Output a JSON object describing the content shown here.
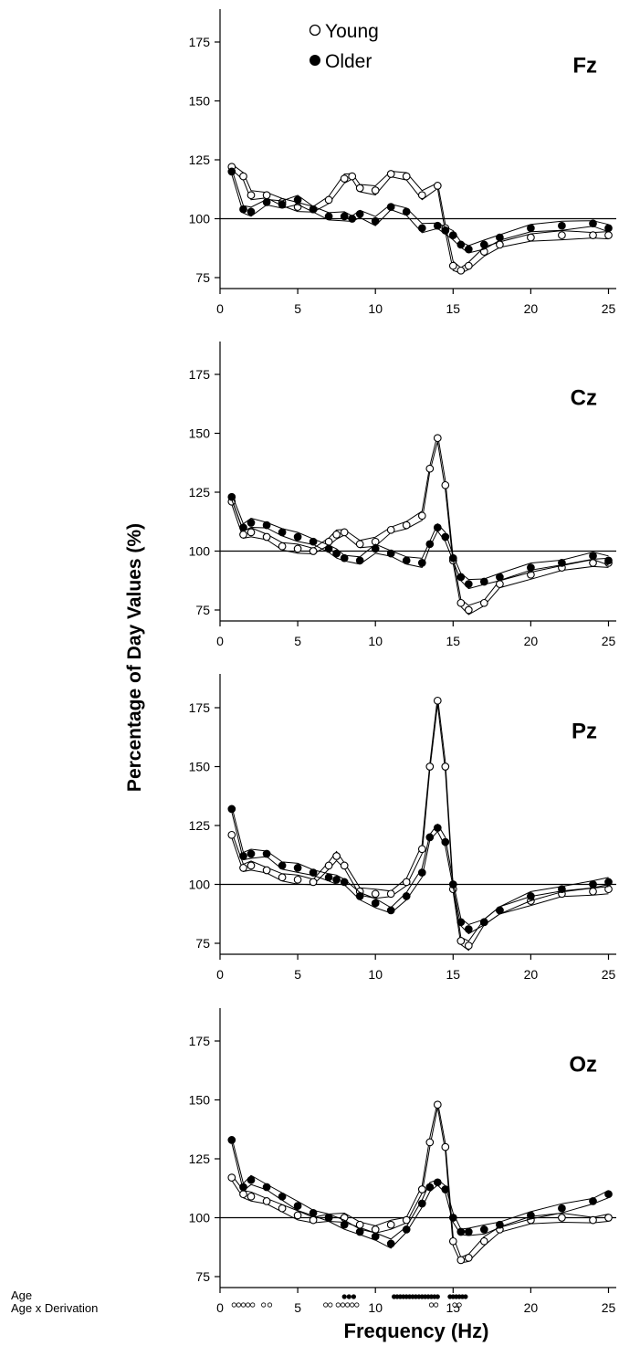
{
  "chart_data": {
    "type": "line",
    "ylabel": "Percentage of Day Values (%)",
    "xlabel": "Frequency (Hz)",
    "legend": {
      "position": "top-center",
      "entries": [
        {
          "name": "Young",
          "marker": "open-circle"
        },
        {
          "name": "Older",
          "marker": "filled-circle"
        }
      ]
    },
    "xlim": [
      0,
      25.5
    ],
    "ylim": [
      70,
      190
    ],
    "x_ticks": [
      0,
      5,
      10,
      15,
      20,
      25
    ],
    "y_ticks": [
      75,
      100,
      125,
      150,
      175
    ],
    "reference_line": 100,
    "grid": false,
    "series_order": [
      "Young",
      "Older"
    ],
    "panels": [
      {
        "label": "Fz",
        "x": [
          0.75,
          1.5,
          2,
          3,
          4,
          5,
          6,
          7,
          8,
          8.5,
          9,
          10,
          11,
          12,
          13,
          14,
          14.5,
          15,
          15.5,
          16,
          17,
          18,
          20,
          22,
          24,
          25
        ],
        "series": [
          {
            "name": "Young",
            "values": [
              122,
              118,
              110,
              110,
              107,
              105,
              104,
              108,
              117,
              118,
              113,
              112,
              119,
              118,
              110,
              114,
              96,
              80,
              78,
              80,
              86,
              89,
              92,
              93,
              93,
              93
            ]
          },
          {
            "name": "Older",
            "values": [
              120,
              104,
              103,
              107,
              106,
              108,
              104,
              101,
              101,
              100,
              102,
              99,
              105,
              103,
              96,
              97,
              95,
              93,
              89,
              87,
              89,
              92,
              96,
              97,
              98,
              96
            ]
          }
        ]
      },
      {
        "label": "Cz",
        "x": [
          0.75,
          1.5,
          2,
          3,
          4,
          5,
          6,
          7,
          7.5,
          8,
          9,
          10,
          11,
          12,
          13,
          13.5,
          14,
          14.5,
          15,
          15.5,
          16,
          17,
          18,
          20,
          22,
          24,
          25
        ],
        "series": [
          {
            "name": "Young",
            "values": [
              121,
              107,
              108,
              106,
              102,
              101,
              100,
              104,
              107,
              108,
              103,
              104,
              109,
              111,
              115,
              135,
              148,
              128,
              96,
              78,
              75,
              78,
              86,
              90,
              93,
              95,
              95
            ]
          },
          {
            "name": "Older",
            "values": [
              123,
              110,
              112,
              111,
              108,
              106,
              104,
              101,
              99,
              97,
              96,
              101,
              99,
              96,
              95,
              103,
              110,
              106,
              97,
              89,
              86,
              87,
              89,
              93,
              95,
              98,
              96
            ]
          }
        ]
      },
      {
        "label": "Pz",
        "x": [
          0.75,
          1.5,
          2,
          3,
          4,
          5,
          6,
          7,
          7.5,
          8,
          9,
          10,
          11,
          12,
          13,
          13.5,
          14,
          14.5,
          15,
          15.5,
          16,
          17,
          18,
          20,
          22,
          24,
          25
        ],
        "series": [
          {
            "name": "Young",
            "values": [
              121,
              107,
              108,
              106,
              103,
              102,
              101,
              108,
              112,
              108,
              97,
              96,
              96,
              101,
              115,
              150,
              178,
              150,
              98,
              76,
              74,
              84,
              89,
              93,
              96,
              97,
              98
            ]
          },
          {
            "name": "Older",
            "values": [
              132,
              112,
              113,
              113,
              108,
              107,
              105,
              103,
              102,
              101,
              95,
              92,
              89,
              95,
              105,
              120,
              124,
              118,
              100,
              84,
              81,
              84,
              89,
              95,
              98,
              100,
              101
            ]
          }
        ]
      },
      {
        "label": "Oz",
        "x": [
          0.75,
          1.5,
          2,
          3,
          4,
          5,
          6,
          7,
          8,
          9,
          10,
          11,
          12,
          13,
          13.5,
          14,
          14.5,
          15,
          15.5,
          16,
          17,
          18,
          20,
          22,
          24,
          25
        ],
        "series": [
          {
            "name": "Young",
            "values": [
              117,
              110,
              109,
              107,
              104,
              101,
              99,
              100,
              100,
              97,
              95,
              97,
              99,
              112,
              132,
              148,
              130,
              90,
              82,
              83,
              90,
              95,
              99,
              100,
              99,
              100
            ]
          },
          {
            "name": "Older",
            "values": [
              133,
              113,
              116,
              113,
              109,
              105,
              102,
              100,
              97,
              94,
              92,
              89,
              95,
              106,
              113,
              115,
              112,
              100,
              94,
              94,
              95,
              97,
              101,
              104,
              107,
              110
            ]
          }
        ]
      }
    ],
    "significance": {
      "labels": [
        "Age",
        "Age x Derivation"
      ],
      "rows": [
        {
          "label": "Age",
          "marker": "filled-circle",
          "x": [
            8.0,
            8.3,
            8.6,
            11.2,
            11.4,
            11.6,
            11.8,
            12.0,
            12.2,
            12.4,
            12.6,
            12.8,
            13.0,
            13.2,
            13.4,
            13.6,
            13.8,
            14.0,
            14.8,
            15.0,
            15.2,
            15.4,
            15.6,
            15.8
          ]
        },
        {
          "label": "Age x Derivation",
          "marker": "open-circle",
          "x": [
            0.9,
            1.2,
            1.5,
            1.8,
            2.1,
            2.8,
            3.2,
            6.8,
            7.1,
            7.6,
            7.9,
            8.2,
            8.5,
            8.8,
            13.6,
            13.9,
            15.1,
            15.4
          ]
        }
      ]
    }
  }
}
